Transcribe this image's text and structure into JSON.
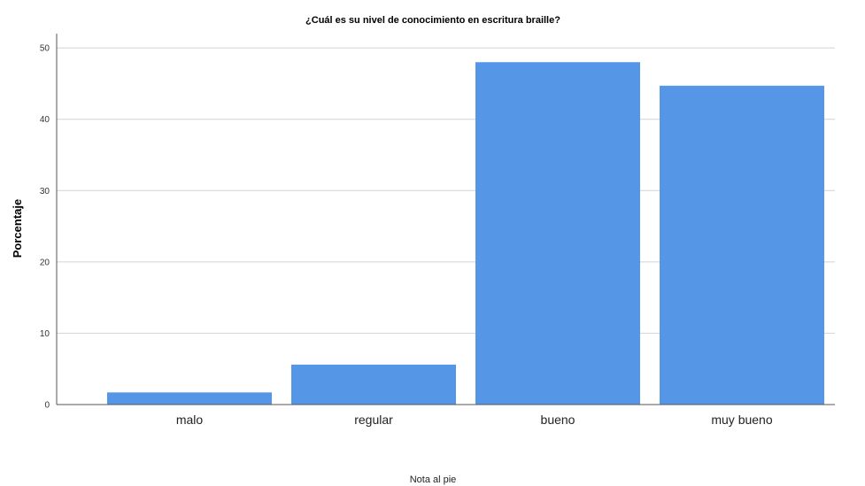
{
  "chart_data": {
    "type": "bar",
    "title": "¿Cuál es su nivel de conocimiento en escritura braille?",
    "xlabel": "",
    "ylabel": "Porcentaje",
    "categories": [
      "malo",
      "regular",
      "bueno",
      "muy bueno"
    ],
    "values": [
      1.7,
      5.6,
      48.0,
      44.7
    ],
    "ylim": [
      0,
      52
    ],
    "yticks": [
      0,
      10,
      20,
      30,
      40,
      50
    ],
    "grid": true,
    "bar_color": "#5596e6",
    "footnote": "Nota al pie"
  }
}
